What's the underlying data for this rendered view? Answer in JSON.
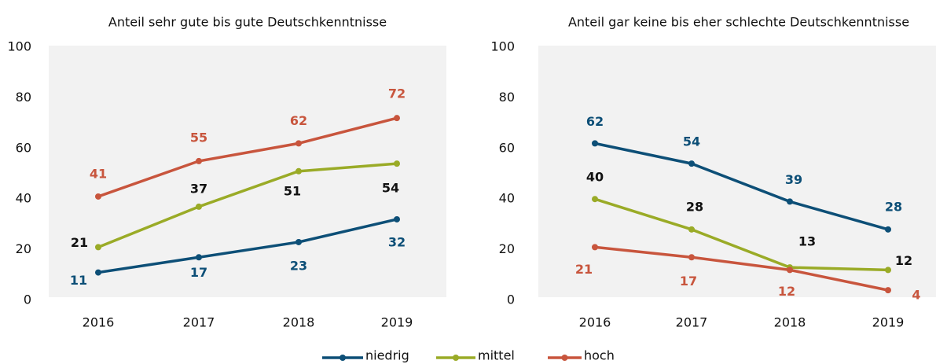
{
  "chart_data": [
    {
      "type": "line",
      "title": "Anteil sehr gute bis gute Deutschkenntnisse",
      "categories": [
        "2016",
        "2017",
        "2018",
        "2019"
      ],
      "ylim": [
        0,
        100
      ],
      "yticks": [
        0,
        20,
        40,
        60,
        80,
        100
      ],
      "series": [
        {
          "name": "niedrig",
          "color": "#0d4f77",
          "values": [
            11,
            17,
            23,
            32
          ]
        },
        {
          "name": "mittel",
          "color": "#9aab27",
          "values": [
            21,
            37,
            51,
            54
          ]
        },
        {
          "name": "hoch",
          "color": "#c8553d",
          "values": [
            41,
            55,
            62,
            72
          ]
        }
      ]
    },
    {
      "type": "line",
      "title": "Anteil gar keine bis eher schlechte Deutschkenntnisse",
      "categories": [
        "2016",
        "2017",
        "2018",
        "2019"
      ],
      "ylim": [
        0,
        100
      ],
      "yticks": [
        0,
        20,
        40,
        60,
        80,
        100
      ],
      "series": [
        {
          "name": "niedrig",
          "color": "#0d4f77",
          "values": [
            62,
            54,
            39,
            28
          ]
        },
        {
          "name": "mittel",
          "color": "#9aab27",
          "values": [
            40,
            28,
            13,
            12
          ]
        },
        {
          "name": "hoch",
          "color": "#c8553d",
          "values": [
            21,
            17,
            12,
            4
          ]
        }
      ]
    }
  ]
}
